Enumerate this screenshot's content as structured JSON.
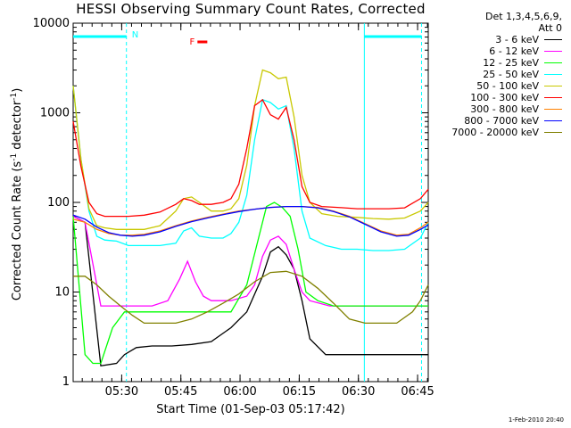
{
  "chart_data": {
    "type": "line",
    "title": "HESSI Observing Summary Count Rates, Corrected",
    "xlabel": "Start Time (01-Sep-03 05:17:42)",
    "ylabel_main": "Corrected Count Rate (s",
    "ylabel_sup1": "-1",
    "ylabel_mid": " detector",
    "ylabel_sup2": "-1",
    "ylabel_end": ")",
    "yscale": "log",
    "ylim": [
      1,
      10000
    ],
    "yticks": [
      {
        "v": 1,
        "label": "1"
      },
      {
        "v": 10,
        "label": "10"
      },
      {
        "v": 100,
        "label": "100"
      },
      {
        "v": 1000,
        "label": "1000"
      },
      {
        "v": 10000,
        "label": "10000"
      }
    ],
    "xlim_minutes": [
      0,
      90
    ],
    "xticks": [
      {
        "m": 12.3,
        "label": "05:30"
      },
      {
        "m": 27.3,
        "label": "05:45"
      },
      {
        "m": 42.3,
        "label": "06:00"
      },
      {
        "m": 57.3,
        "label": "06:15"
      },
      {
        "m": 72.3,
        "label": "06:30"
      },
      {
        "m": 87.3,
        "label": "06:45"
      }
    ],
    "legend_header": [
      "Det 1,3,4,5,6,9,",
      "Att 0"
    ],
    "annotations": {
      "night_label": "N",
      "flare_label": "F",
      "night_color": "#00ffff",
      "flare_color": "#ff0000"
    },
    "series": [
      {
        "name": "3 - 6 keV",
        "color": "#000000",
        "points": [
          [
            0,
            70
          ],
          [
            3,
            60
          ],
          [
            7,
            1.5
          ],
          [
            11,
            1.6
          ],
          [
            13,
            2
          ],
          [
            16,
            2.4
          ],
          [
            20,
            2.5
          ],
          [
            25,
            2.5
          ],
          [
            30,
            2.6
          ],
          [
            35,
            2.8
          ],
          [
            40,
            4
          ],
          [
            44,
            6
          ],
          [
            48,
            15
          ],
          [
            50,
            28
          ],
          [
            52,
            32
          ],
          [
            54,
            26
          ],
          [
            56,
            18
          ],
          [
            58,
            8
          ],
          [
            60,
            3
          ],
          [
            64,
            2
          ],
          [
            70,
            2
          ],
          [
            75,
            2
          ],
          [
            80,
            2
          ],
          [
            84,
            2
          ],
          [
            88,
            2
          ],
          [
            90,
            2
          ]
        ]
      },
      {
        "name": "6 - 12 keV",
        "color": "#ff00ff",
        "points": [
          [
            0,
            70
          ],
          [
            3,
            60
          ],
          [
            7,
            7
          ],
          [
            11,
            7
          ],
          [
            15,
            7
          ],
          [
            20,
            7
          ],
          [
            24,
            8
          ],
          [
            27,
            14
          ],
          [
            29,
            22
          ],
          [
            31,
            13
          ],
          [
            33,
            9
          ],
          [
            35,
            8
          ],
          [
            37,
            8
          ],
          [
            40,
            8
          ],
          [
            44,
            9
          ],
          [
            46,
            12
          ],
          [
            48,
            25
          ],
          [
            50,
            38
          ],
          [
            52,
            42
          ],
          [
            54,
            34
          ],
          [
            56,
            18
          ],
          [
            58,
            10
          ],
          [
            60,
            8
          ],
          [
            65,
            7
          ],
          [
            70,
            7
          ],
          [
            75,
            7
          ],
          [
            80,
            7
          ],
          [
            84,
            7
          ],
          [
            88,
            7
          ],
          [
            90,
            7
          ]
        ]
      },
      {
        "name": "12 - 25 keV",
        "color": "#00ff00",
        "points": [
          [
            0,
            70
          ],
          [
            3,
            2
          ],
          [
            5,
            1.6
          ],
          [
            7,
            1.6
          ],
          [
            10,
            4
          ],
          [
            13,
            6
          ],
          [
            18,
            6
          ],
          [
            24,
            6
          ],
          [
            30,
            6
          ],
          [
            36,
            6
          ],
          [
            40,
            6
          ],
          [
            44,
            12
          ],
          [
            47,
            40
          ],
          [
            49,
            90
          ],
          [
            51,
            100
          ],
          [
            53,
            88
          ],
          [
            55,
            70
          ],
          [
            57,
            30
          ],
          [
            59,
            10
          ],
          [
            62,
            8
          ],
          [
            66,
            7
          ],
          [
            72,
            7
          ],
          [
            78,
            7
          ],
          [
            84,
            7
          ],
          [
            88,
            7
          ],
          [
            90,
            7
          ]
        ]
      },
      {
        "name": "25 - 50 keV",
        "color": "#00ffff",
        "points": [
          [
            0,
            2000
          ],
          [
            2,
            300
          ],
          [
            4,
            80
          ],
          [
            6,
            42
          ],
          [
            8,
            38
          ],
          [
            11,
            37
          ],
          [
            14,
            33
          ],
          [
            18,
            33
          ],
          [
            22,
            33
          ],
          [
            26,
            35
          ],
          [
            28,
            48
          ],
          [
            30,
            52
          ],
          [
            32,
            42
          ],
          [
            35,
            40
          ],
          [
            38,
            40
          ],
          [
            40,
            45
          ],
          [
            42,
            60
          ],
          [
            44,
            120
          ],
          [
            46,
            500
          ],
          [
            48,
            1400
          ],
          [
            50,
            1300
          ],
          [
            52,
            1100
          ],
          [
            54,
            1200
          ],
          [
            56,
            400
          ],
          [
            58,
            80
          ],
          [
            60,
            40
          ],
          [
            64,
            33
          ],
          [
            68,
            30
          ],
          [
            72,
            30
          ],
          [
            76,
            29
          ],
          [
            80,
            29
          ],
          [
            84,
            30
          ],
          [
            88,
            40
          ],
          [
            90,
            60
          ]
        ]
      },
      {
        "name": "50 - 100 keV",
        "color": "#c8c800",
        "points": [
          [
            0,
            2000
          ],
          [
            2,
            300
          ],
          [
            4,
            85
          ],
          [
            6,
            55
          ],
          [
            8,
            52
          ],
          [
            11,
            50
          ],
          [
            14,
            50
          ],
          [
            18,
            50
          ],
          [
            22,
            55
          ],
          [
            26,
            80
          ],
          [
            28,
            110
          ],
          [
            30,
            115
          ],
          [
            32,
            100
          ],
          [
            35,
            80
          ],
          [
            38,
            80
          ],
          [
            40,
            85
          ],
          [
            42,
            110
          ],
          [
            44,
            260
          ],
          [
            46,
            1200
          ],
          [
            48,
            3000
          ],
          [
            50,
            2800
          ],
          [
            52,
            2400
          ],
          [
            54,
            2500
          ],
          [
            56,
            900
          ],
          [
            58,
            200
          ],
          [
            60,
            100
          ],
          [
            63,
            75
          ],
          [
            67,
            70
          ],
          [
            72,
            68
          ],
          [
            76,
            66
          ],
          [
            80,
            65
          ],
          [
            84,
            67
          ],
          [
            88,
            80
          ],
          [
            90,
            100
          ]
        ]
      },
      {
        "name": "100 - 300 keV",
        "color": "#ff0000",
        "points": [
          [
            0,
            800
          ],
          [
            2,
            250
          ],
          [
            4,
            100
          ],
          [
            6,
            75
          ],
          [
            8,
            70
          ],
          [
            11,
            70
          ],
          [
            14,
            70
          ],
          [
            18,
            72
          ],
          [
            22,
            78
          ],
          [
            26,
            95
          ],
          [
            28,
            110
          ],
          [
            30,
            105
          ],
          [
            32,
            95
          ],
          [
            35,
            95
          ],
          [
            38,
            100
          ],
          [
            40,
            110
          ],
          [
            42,
            160
          ],
          [
            44,
            400
          ],
          [
            46,
            1200
          ],
          [
            48,
            1400
          ],
          [
            50,
            950
          ],
          [
            52,
            850
          ],
          [
            54,
            1150
          ],
          [
            56,
            500
          ],
          [
            58,
            150
          ],
          [
            60,
            100
          ],
          [
            63,
            90
          ],
          [
            67,
            88
          ],
          [
            72,
            85
          ],
          [
            76,
            85
          ],
          [
            80,
            85
          ],
          [
            84,
            87
          ],
          [
            88,
            110
          ],
          [
            90,
            140
          ]
        ]
      },
      {
        "name": "300 - 800 keV",
        "color": "#ff8000",
        "points": [
          [
            0,
            65
          ],
          [
            3,
            60
          ],
          [
            6,
            50
          ],
          [
            9,
            45
          ],
          [
            12,
            43
          ],
          [
            15,
            43
          ],
          [
            18,
            44
          ],
          [
            22,
            48
          ],
          [
            26,
            55
          ],
          [
            30,
            62
          ],
          [
            34,
            68
          ],
          [
            38,
            74
          ],
          [
            42,
            80
          ],
          [
            46,
            84
          ],
          [
            50,
            88
          ],
          [
            54,
            90
          ],
          [
            58,
            90
          ],
          [
            62,
            88
          ],
          [
            66,
            80
          ],
          [
            70,
            70
          ],
          [
            74,
            58
          ],
          [
            78,
            48
          ],
          [
            82,
            43
          ],
          [
            85,
            44
          ],
          [
            88,
            52
          ],
          [
            90,
            60
          ]
        ]
      },
      {
        "name": "800 - 7000 keV",
        "color": "#0000ff",
        "points": [
          [
            0,
            72
          ],
          [
            3,
            65
          ],
          [
            6,
            53
          ],
          [
            9,
            46
          ],
          [
            12,
            43
          ],
          [
            15,
            42
          ],
          [
            18,
            43
          ],
          [
            22,
            47
          ],
          [
            26,
            54
          ],
          [
            30,
            61
          ],
          [
            34,
            67
          ],
          [
            38,
            73
          ],
          [
            42,
            79
          ],
          [
            46,
            84
          ],
          [
            50,
            88
          ],
          [
            54,
            90
          ],
          [
            58,
            90
          ],
          [
            62,
            87
          ],
          [
            66,
            79
          ],
          [
            70,
            69
          ],
          [
            74,
            57
          ],
          [
            78,
            47
          ],
          [
            82,
            42
          ],
          [
            85,
            43
          ],
          [
            88,
            50
          ],
          [
            90,
            56
          ]
        ]
      },
      {
        "name": "7000 - 20000 keV",
        "color": "#808000",
        "points": [
          [
            0,
            15
          ],
          [
            3,
            15
          ],
          [
            6,
            12
          ],
          [
            9,
            9
          ],
          [
            12,
            7
          ],
          [
            15,
            5.5
          ],
          [
            18,
            4.5
          ],
          [
            22,
            4.5
          ],
          [
            26,
            4.5
          ],
          [
            30,
            5
          ],
          [
            34,
            6
          ],
          [
            38,
            7.5
          ],
          [
            42,
            9.5
          ],
          [
            46,
            13
          ],
          [
            50,
            16.5
          ],
          [
            54,
            17
          ],
          [
            58,
            15
          ],
          [
            62,
            11
          ],
          [
            66,
            7.5
          ],
          [
            70,
            5
          ],
          [
            74,
            4.5
          ],
          [
            78,
            4.5
          ],
          [
            82,
            4.5
          ],
          [
            86,
            6
          ],
          [
            88,
            8
          ],
          [
            90,
            12
          ]
        ]
      }
    ]
  },
  "footer": "1-Feb-2010 20:40"
}
